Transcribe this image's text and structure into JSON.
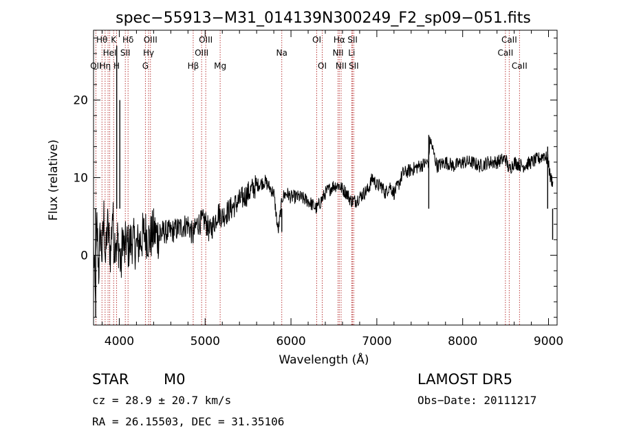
{
  "title": "spec−55913−M31_014139N300249_F2_sp09−051.fits",
  "info": {
    "class": "STAR",
    "subclass": "M0",
    "survey": "LAMOST DR5",
    "cz": "cz = 28.9 ± 20.7 km/s",
    "obs_date": "Obs−Date: 20111217",
    "coords": "RA =  26.15503, DEC =  31.35106"
  },
  "chart_data": {
    "type": "line",
    "title": "spec−55913−M31_014139N300249_F2_sp09−051.fits",
    "xlabel": "Wavelength (Å)",
    "ylabel": "Flux (relative)",
    "xlim": [
      3700,
      9100
    ],
    "ylim": [
      -9,
      29
    ],
    "xticks": [
      4000,
      5000,
      6000,
      7000,
      8000,
      9000
    ],
    "yticks": [
      0,
      10,
      20
    ],
    "grid": false,
    "colors": {
      "line": "#000000",
      "marker": "#b22222"
    },
    "series": [
      {
        "x": [
          3700,
          3720,
          3740,
          3760,
          3780,
          3800,
          3820,
          3840,
          3860,
          3880,
          3900,
          3920,
          3940,
          3960,
          3970,
          3980,
          4000,
          4020,
          4040,
          4060,
          4080,
          4100,
          4150,
          4200,
          4250,
          4300,
          4350,
          4400,
          4450,
          4500,
          4600,
          4700,
          4800,
          4860,
          4900,
          5000,
          5050,
          5100,
          5150,
          5200,
          5300,
          5400,
          5500,
          5600,
          5700,
          5800,
          5850,
          5900,
          5950,
          6000,
          6100,
          6200,
          6300,
          6350,
          6400,
          6450,
          6500,
          6560,
          6600,
          6650,
          6700,
          6750,
          6800,
          6850,
          6900,
          6950,
          7000,
          7050,
          7100,
          7150,
          7200,
          7250,
          7300,
          7400,
          7500,
          7600,
          7620,
          7700,
          7800,
          7900,
          8000,
          8100,
          8200,
          8300,
          8400,
          8500,
          8540,
          8600,
          8700,
          8800,
          8900,
          8950,
          9000,
          9020,
          9050
        ],
        "y": [
          1,
          -6,
          4,
          -2,
          3,
          0,
          5,
          -1,
          4,
          2,
          0,
          6,
          1,
          3,
          0,
          2,
          1,
          -2,
          3,
          0,
          2,
          1,
          2,
          1,
          2,
          3,
          2,
          3,
          2.5,
          3,
          3,
          3.5,
          4,
          2.5,
          4,
          4.5,
          3,
          4,
          5.5,
          5,
          6,
          7,
          8,
          9,
          9.5,
          8,
          3,
          7.5,
          8,
          7.5,
          7.5,
          7,
          6,
          7,
          8,
          8.5,
          9,
          9,
          8.5,
          8,
          7,
          7,
          7.5,
          8,
          8.5,
          10,
          9,
          9,
          8,
          9,
          8,
          9,
          10.5,
          11,
          11.5,
          12,
          15,
          11.5,
          12,
          11.5,
          12,
          12,
          11.5,
          12,
          12,
          12.5,
          11,
          12,
          11.5,
          12,
          12.5,
          13,
          12,
          10,
          9.5
        ]
      }
    ],
    "spikes": [
      {
        "x": 3970,
        "y": 27
      },
      {
        "x": 4006,
        "y": 20
      },
      {
        "x": 3725,
        "y": -8
      },
      {
        "x": 3745,
        "y": 6
      },
      {
        "x": 5893,
        "y": 3
      },
      {
        "x": 7605,
        "y": 15.5
      },
      {
        "x": 8990,
        "y": 14
      },
      {
        "x": 9048,
        "y": 2
      }
    ],
    "lines": [
      {
        "x": 3798,
        "label": "Hθ",
        "row": 0
      },
      {
        "x": 3727,
        "label": "OII",
        "row": 2
      },
      {
        "x": 3835,
        "label": "Hη",
        "row": 2
      },
      {
        "x": 3869,
        "label": "",
        "row": 1
      },
      {
        "x": 3889,
        "label": "HeI",
        "row": 1
      },
      {
        "x": 3934,
        "label": "K",
        "row": 0
      },
      {
        "x": 3969,
        "label": "H",
        "row": 2
      },
      {
        "x": 4070,
        "label": "SII",
        "row": 1
      },
      {
        "x": 4102,
        "label": "Hδ",
        "row": 0
      },
      {
        "x": 4304,
        "label": "G",
        "row": 2
      },
      {
        "x": 4341,
        "label": "Hγ",
        "row": 1
      },
      {
        "x": 4363,
        "label": "OIII",
        "row": 0
      },
      {
        "x": 4861,
        "label": "Hβ",
        "row": 2
      },
      {
        "x": 4959,
        "label": "OIII",
        "row": 1
      },
      {
        "x": 5007,
        "label": "OIII",
        "row": 0
      },
      {
        "x": 5175,
        "label": "Mg",
        "row": 2
      },
      {
        "x": 5893,
        "label": "Na",
        "row": 1
      },
      {
        "x": 6300,
        "label": "OI",
        "row": 0
      },
      {
        "x": 6364,
        "label": "OI",
        "row": 2
      },
      {
        "x": 6548,
        "label": "NII",
        "row": 1
      },
      {
        "x": 6563,
        "label": "Hα",
        "row": 0
      },
      {
        "x": 6584,
        "label": "NII",
        "row": 2
      },
      {
        "x": 6707,
        "label": "Li",
        "row": 1
      },
      {
        "x": 6717,
        "label": "SII",
        "row": 0
      },
      {
        "x": 6731,
        "label": "SII",
        "row": 2
      },
      {
        "x": 8498,
        "label": "CaII",
        "row": 1
      },
      {
        "x": 8542,
        "label": "CaII",
        "row": 0
      },
      {
        "x": 8662,
        "label": "CaII",
        "row": 2
      }
    ]
  }
}
